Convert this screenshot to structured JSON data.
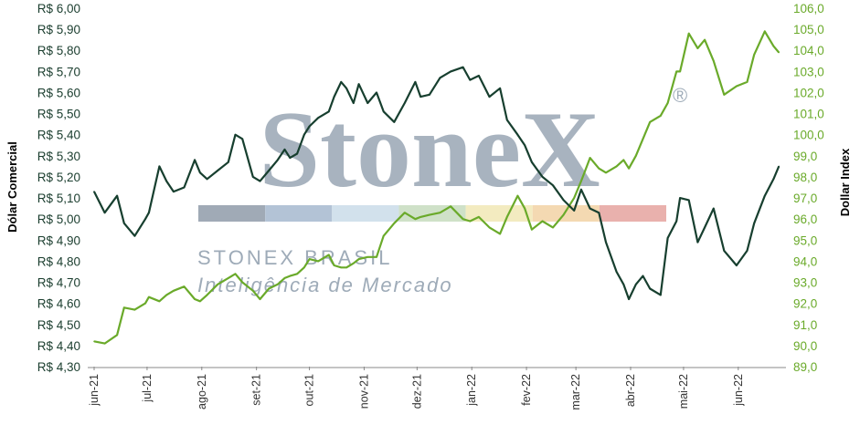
{
  "colors": {
    "brl": "#173f2f",
    "dxy": "#6aaa2a",
    "left_axis_text": "#1a3d2e",
    "right_axis_text": "#6aaa2a",
    "watermark": "#9eabb8",
    "band": [
      "#a0aab6",
      "#b3c3d6",
      "#d2e1ec",
      "#cfe1c8",
      "#f3ebc0",
      "#f4d9b2",
      "#e9b1ad"
    ]
  },
  "watermark": {
    "logo": "StoneX",
    "registered": "®",
    "line1": "STONEX BRASIL",
    "line2": "Inteligência de Mercado"
  },
  "chart_data": {
    "type": "line",
    "title": "",
    "xlabel": "",
    "x_ticks": [
      "jun-21",
      "jul-21",
      "ago-21",
      "set-21",
      "out-21",
      "nov-21",
      "dez-21",
      "jan-22",
      "fev-22",
      "mar-22",
      "abr-22",
      "mai-22",
      "jun-22"
    ],
    "y_left": {
      "label": "Dólar Comercial",
      "ticks": [
        "R$ 4,30",
        "R$ 4,40",
        "R$ 4,50",
        "R$ 4,60",
        "R$ 4,70",
        "R$ 4,80",
        "R$ 4,90",
        "R$ 5,00",
        "R$ 5,10",
        "R$ 5,20",
        "R$ 5,30",
        "R$ 5,40",
        "R$ 5,50",
        "R$ 5,60",
        "R$ 5,70",
        "R$ 5,80",
        "R$ 5,90",
        "R$ 6,00"
      ],
      "range": [
        4.3,
        6.0
      ]
    },
    "y_right": {
      "label": "Dollar Index",
      "ticks": [
        "89,0",
        "90,0",
        "91,0",
        "92,0",
        "93,0",
        "94,0",
        "95,0",
        "96,0",
        "97,0",
        "98,0",
        "99,0",
        "100,0",
        "101,0",
        "102,0",
        "103,0",
        "104,0",
        "105,0",
        "106,0"
      ],
      "range": [
        89.0,
        106.0
      ]
    },
    "series": [
      {
        "name": "Dólar Comercial",
        "axis": "left",
        "x": [
          "2021-06-01",
          "2021-06-07",
          "2021-06-14",
          "2021-06-18",
          "2021-06-24",
          "2021-06-30",
          "2021-07-02",
          "2021-07-08",
          "2021-07-12",
          "2021-07-16",
          "2021-07-22",
          "2021-07-28",
          "2021-07-31",
          "2021-08-04",
          "2021-08-10",
          "2021-08-16",
          "2021-08-20",
          "2021-08-24",
          "2021-08-30",
          "2021-09-03",
          "2021-09-08",
          "2021-09-13",
          "2021-09-17",
          "2021-09-20",
          "2021-09-24",
          "2021-09-28",
          "2021-10-01",
          "2021-10-06",
          "2021-10-12",
          "2021-10-15",
          "2021-10-19",
          "2021-10-22",
          "2021-10-26",
          "2021-10-29",
          "2021-11-03",
          "2021-11-08",
          "2021-11-12",
          "2021-11-18",
          "2021-11-24",
          "2021-11-30",
          "2021-12-03",
          "2021-12-08",
          "2021-12-14",
          "2021-12-20",
          "2021-12-27",
          "2021-12-31",
          "2022-01-05",
          "2022-01-11",
          "2022-01-17",
          "2022-01-21",
          "2022-01-27",
          "2022-01-31",
          "2022-02-04",
          "2022-02-10",
          "2022-02-16",
          "2022-02-22",
          "2022-02-28",
          "2022-03-04",
          "2022-03-09",
          "2022-03-14",
          "2022-03-18",
          "2022-03-24",
          "2022-03-28",
          "2022-03-31",
          "2022-04-04",
          "2022-04-08",
          "2022-04-12",
          "2022-04-18",
          "2022-04-22",
          "2022-04-27",
          "2022-04-29",
          "2022-05-04",
          "2022-05-09",
          "2022-05-13",
          "2022-05-18",
          "2022-05-24",
          "2022-05-31",
          "2022-06-06",
          "2022-06-10",
          "2022-06-16",
          "2022-06-21",
          "2022-06-24"
        ],
        "values": [
          5.13,
          5.03,
          5.11,
          4.98,
          4.92,
          5.0,
          5.03,
          5.25,
          5.18,
          5.13,
          5.15,
          5.28,
          5.22,
          5.19,
          5.23,
          5.27,
          5.4,
          5.38,
          5.2,
          5.18,
          5.23,
          5.28,
          5.33,
          5.29,
          5.31,
          5.4,
          5.44,
          5.48,
          5.51,
          5.58,
          5.65,
          5.62,
          5.55,
          5.64,
          5.55,
          5.6,
          5.51,
          5.46,
          5.55,
          5.65,
          5.58,
          5.59,
          5.67,
          5.7,
          5.72,
          5.66,
          5.68,
          5.58,
          5.62,
          5.47,
          5.4,
          5.35,
          5.27,
          5.2,
          5.16,
          5.09,
          5.04,
          5.14,
          5.05,
          5.03,
          4.89,
          4.75,
          4.69,
          4.62,
          4.69,
          4.73,
          4.67,
          4.64,
          4.91,
          4.99,
          5.1,
          5.09,
          4.89,
          4.96,
          5.05,
          4.85,
          4.78,
          4.85,
          4.98,
          5.11,
          5.19,
          5.25
        ]
      },
      {
        "name": "Dollar Index",
        "axis": "right",
        "x": [
          "2021-06-01",
          "2021-06-07",
          "2021-06-14",
          "2021-06-18",
          "2021-06-24",
          "2021-06-30",
          "2021-07-02",
          "2021-07-08",
          "2021-07-12",
          "2021-07-16",
          "2021-07-22",
          "2021-07-28",
          "2021-07-31",
          "2021-08-04",
          "2021-08-10",
          "2021-08-16",
          "2021-08-20",
          "2021-08-24",
          "2021-08-30",
          "2021-09-03",
          "2021-09-08",
          "2021-09-13",
          "2021-09-17",
          "2021-09-20",
          "2021-09-24",
          "2021-09-28",
          "2021-10-01",
          "2021-10-06",
          "2021-10-12",
          "2021-10-15",
          "2021-10-19",
          "2021-10-22",
          "2021-10-26",
          "2021-10-29",
          "2021-11-03",
          "2021-11-08",
          "2021-11-12",
          "2021-11-18",
          "2021-11-24",
          "2021-11-30",
          "2021-12-03",
          "2021-12-08",
          "2021-12-14",
          "2021-12-20",
          "2021-12-27",
          "2021-12-31",
          "2022-01-05",
          "2022-01-11",
          "2022-01-17",
          "2022-01-21",
          "2022-01-27",
          "2022-01-31",
          "2022-02-04",
          "2022-02-10",
          "2022-02-16",
          "2022-02-22",
          "2022-02-28",
          "2022-03-04",
          "2022-03-09",
          "2022-03-14",
          "2022-03-18",
          "2022-03-24",
          "2022-03-28",
          "2022-03-31",
          "2022-04-04",
          "2022-04-08",
          "2022-04-12",
          "2022-04-18",
          "2022-04-22",
          "2022-04-27",
          "2022-04-29",
          "2022-05-04",
          "2022-05-09",
          "2022-05-13",
          "2022-05-18",
          "2022-05-24",
          "2022-05-31",
          "2022-06-06",
          "2022-06-10",
          "2022-06-16",
          "2022-06-21",
          "2022-06-24"
        ],
        "values": [
          90.2,
          90.1,
          90.5,
          91.8,
          91.7,
          92.0,
          92.3,
          92.1,
          92.4,
          92.6,
          92.8,
          92.2,
          92.1,
          92.4,
          92.9,
          93.2,
          93.4,
          93.0,
          92.6,
          92.2,
          92.7,
          92.9,
          93.2,
          93.3,
          93.4,
          93.7,
          94.1,
          94.0,
          94.3,
          93.8,
          93.7,
          93.7,
          93.9,
          94.1,
          94.2,
          94.2,
          95.2,
          95.8,
          96.3,
          96.0,
          96.1,
          96.2,
          96.3,
          96.6,
          96.0,
          95.9,
          96.1,
          95.6,
          95.3,
          96.1,
          97.1,
          96.5,
          95.5,
          95.9,
          95.6,
          96.2,
          97.0,
          97.8,
          98.9,
          98.4,
          98.2,
          98.5,
          98.8,
          98.4,
          99.0,
          99.8,
          100.6,
          100.9,
          101.5,
          103.0,
          103.0,
          104.8,
          104.1,
          104.5,
          103.5,
          101.9,
          102.3,
          102.5,
          103.8,
          104.9,
          104.2,
          103.9
        ]
      }
    ],
    "grid": false,
    "legend": "none"
  }
}
